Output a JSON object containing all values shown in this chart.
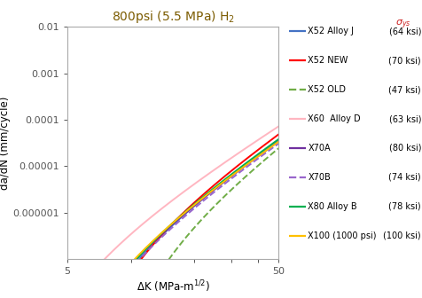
{
  "title": "800psi (5.5 MPa) H$_2$",
  "xlabel": "ΔK (MPa-m¹⁄²)",
  "ylabel": "da/dN (mm/cycle)",
  "xlim": [
    5,
    50
  ],
  "ylim": [
    1e-07,
    0.01
  ],
  "curves": [
    {
      "label": "X52 Alloy J",
      "ksi": "(64 ksi)",
      "color": "#4472C4",
      "linestyle": "solid",
      "C": 3.8e-10,
      "m": 3.0,
      "DK_th": 4.5
    },
    {
      "label": "X52 NEW",
      "ksi": "(70 ksi)",
      "color": "#FF0000",
      "linestyle": "solid",
      "C": 5.5e-10,
      "m": 3.0,
      "DK_th": 5.5
    },
    {
      "label": "X52 OLD",
      "ksi": "(47 ksi)",
      "color": "#70AD47",
      "linestyle": "dashed",
      "C": 1.5e-10,
      "m": 3.2,
      "DK_th": 7.5
    },
    {
      "label": "X60  Alloy D",
      "ksi": "(63 ksi)",
      "color": "#FFB6C1",
      "linestyle": "solid",
      "C": 1.5e-09,
      "m": 2.8,
      "DK_th": 3.0
    },
    {
      "label": "X70A",
      "ksi": "(80 ksi)",
      "color": "#7030A0",
      "linestyle": "solid",
      "C": 3.5e-10,
      "m": 3.0,
      "DK_th": 4.0
    },
    {
      "label": "X70B",
      "ksi": "(74 ksi)",
      "color": "#9966CC",
      "linestyle": "dashed",
      "C": 3.2e-10,
      "m": 3.0,
      "DK_th": 4.2
    },
    {
      "label": "X80 Alloy B",
      "ksi": "(78 ksi)",
      "color": "#00B050",
      "linestyle": "solid",
      "C": 4e-10,
      "m": 3.0,
      "DK_th": 4.3
    },
    {
      "label": "X100 (1000 psi)",
      "ksi": "(100 ksi)",
      "color": "#FFC000",
      "linestyle": "solid",
      "C": 4.2e-10,
      "m": 2.95,
      "DK_th": 4.0
    }
  ],
  "background_color": "#FFFFFF",
  "title_color": "#7B5B00",
  "ytick_labels": [
    "0.000001",
    "0.00001",
    "0.0001",
    "0.001",
    "0.01"
  ]
}
